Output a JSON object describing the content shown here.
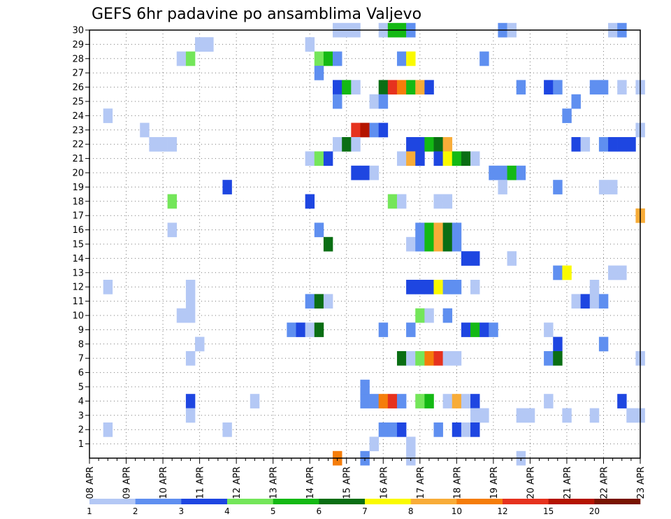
{
  "chart_data": {
    "type": "heatmap",
    "title": "GEFS 6hr padavine po ansamblima Valjevo",
    "xlabel": "",
    "ylabel": "",
    "x_ticks": [
      "08 APR",
      "09 APR",
      "10 APR",
      "11 APR",
      "12 APR",
      "13 APR",
      "14 APR",
      "15 APR",
      "16 APR",
      "17 APR",
      "18 APR",
      "19 APR",
      "20 APR",
      "21 APR",
      "22 APR",
      "23 APR"
    ],
    "y_ticks": [
      "1",
      "2",
      "3",
      "4",
      "5",
      "6",
      "7",
      "8",
      "9",
      "10",
      "11",
      "12",
      "13",
      "14",
      "15",
      "16",
      "17",
      "18",
      "19",
      "20",
      "21",
      "22",
      "23",
      "24",
      "25",
      "26",
      "27",
      "28",
      "29",
      "30"
    ],
    "ylim": [
      0,
      30
    ],
    "xlim_steps": [
      0,
      60
    ],
    "steps_per_day": 4,
    "grid": true,
    "levels": [
      "1",
      "2",
      "3",
      "4",
      "5",
      "6",
      "7",
      "8",
      "10",
      "12",
      "15",
      "20"
    ],
    "level_colors": [
      "#b4c8f5",
      "#5f8ff0",
      "#1e46e1",
      "#74e65a",
      "#14b914",
      "#0a6e14",
      "#fafa00",
      "#f8ac38",
      "#f57d0a",
      "#e6321e",
      "#b41400",
      "#781400"
    ],
    "cells": [
      [
        30,
        27,
        1
      ],
      [
        30,
        28,
        1
      ],
      [
        30,
        29,
        1
      ],
      [
        30,
        32,
        1
      ],
      [
        30,
        33,
        5
      ],
      [
        30,
        34,
        5
      ],
      [
        30,
        35,
        2
      ],
      [
        30,
        45,
        2
      ],
      [
        30,
        46,
        1
      ],
      [
        30,
        57,
        1
      ],
      [
        30,
        58,
        2
      ],
      [
        29,
        12,
        1
      ],
      [
        29,
        13,
        1
      ],
      [
        29,
        24,
        1
      ],
      [
        28,
        10,
        1
      ],
      [
        28,
        11,
        4
      ],
      [
        28,
        25,
        4
      ],
      [
        28,
        26,
        5
      ],
      [
        28,
        27,
        2
      ],
      [
        28,
        34,
        2
      ],
      [
        28,
        35,
        7
      ],
      [
        28,
        43,
        2
      ],
      [
        27,
        25,
        2
      ],
      [
        26,
        27,
        3
      ],
      [
        26,
        28,
        5
      ],
      [
        26,
        29,
        1
      ],
      [
        26,
        32,
        6
      ],
      [
        26,
        33,
        10
      ],
      [
        26,
        34,
        9
      ],
      [
        26,
        35,
        5
      ],
      [
        26,
        36,
        8
      ],
      [
        26,
        37,
        3
      ],
      [
        26,
        47,
        2
      ],
      [
        26,
        50,
        3
      ],
      [
        26,
        51,
        2
      ],
      [
        26,
        55,
        2
      ],
      [
        26,
        56,
        2
      ],
      [
        26,
        58,
        1
      ],
      [
        26,
        60,
        1
      ],
      [
        25,
        27,
        2
      ],
      [
        25,
        31,
        1
      ],
      [
        25,
        32,
        2
      ],
      [
        25,
        53,
        2
      ],
      [
        24,
        2,
        1
      ],
      [
        24,
        52,
        2
      ],
      [
        23,
        6,
        1
      ],
      [
        23,
        29,
        10
      ],
      [
        23,
        30,
        11
      ],
      [
        23,
        31,
        2
      ],
      [
        23,
        32,
        3
      ],
      [
        23,
        60,
        1
      ],
      [
        22,
        7,
        1
      ],
      [
        22,
        8,
        1
      ],
      [
        22,
        9,
        1
      ],
      [
        22,
        27,
        1
      ],
      [
        22,
        28,
        6
      ],
      [
        22,
        29,
        1
      ],
      [
        22,
        35,
        3
      ],
      [
        22,
        36,
        3
      ],
      [
        22,
        37,
        5
      ],
      [
        22,
        38,
        6
      ],
      [
        22,
        39,
        8
      ],
      [
        22,
        53,
        3
      ],
      [
        22,
        54,
        1
      ],
      [
        22,
        56,
        2
      ],
      [
        22,
        57,
        3
      ],
      [
        22,
        58,
        3
      ],
      [
        22,
        59,
        3
      ],
      [
        21,
        24,
        1
      ],
      [
        21,
        25,
        4
      ],
      [
        21,
        26,
        3
      ],
      [
        21,
        34,
        1
      ],
      [
        21,
        35,
        8
      ],
      [
        21,
        36,
        3
      ],
      [
        21,
        38,
        3
      ],
      [
        21,
        39,
        7
      ],
      [
        21,
        40,
        5
      ],
      [
        21,
        41,
        6
      ],
      [
        21,
        42,
        1
      ],
      [
        20,
        29,
        3
      ],
      [
        20,
        30,
        3
      ],
      [
        20,
        31,
        1
      ],
      [
        20,
        44,
        2
      ],
      [
        20,
        45,
        2
      ],
      [
        20,
        46,
        5
      ],
      [
        20,
        47,
        2
      ],
      [
        19,
        15,
        3
      ],
      [
        19,
        45,
        1
      ],
      [
        19,
        51,
        2
      ],
      [
        19,
        56,
        1
      ],
      [
        19,
        57,
        1
      ],
      [
        18,
        9,
        4
      ],
      [
        18,
        24,
        3
      ],
      [
        18,
        33,
        4
      ],
      [
        18,
        34,
        1
      ],
      [
        18,
        38,
        1
      ],
      [
        18,
        39,
        1
      ],
      [
        17,
        60,
        8
      ],
      [
        16,
        9,
        1
      ],
      [
        16,
        25,
        2
      ],
      [
        16,
        36,
        2
      ],
      [
        16,
        37,
        5
      ],
      [
        16,
        38,
        8
      ],
      [
        16,
        39,
        6
      ],
      [
        16,
        40,
        2
      ],
      [
        15,
        26,
        6
      ],
      [
        15,
        35,
        1
      ],
      [
        15,
        36,
        2
      ],
      [
        15,
        37,
        5
      ],
      [
        15,
        38,
        8
      ],
      [
        15,
        39,
        6
      ],
      [
        15,
        40,
        2
      ],
      [
        14,
        41,
        3
      ],
      [
        14,
        42,
        3
      ],
      [
        14,
        46,
        1
      ],
      [
        13,
        51,
        2
      ],
      [
        13,
        52,
        7
      ],
      [
        13,
        57,
        1
      ],
      [
        13,
        58,
        1
      ],
      [
        12,
        2,
        1
      ],
      [
        12,
        11,
        1
      ],
      [
        12,
        35,
        3
      ],
      [
        12,
        36,
        3
      ],
      [
        12,
        37,
        3
      ],
      [
        12,
        38,
        7
      ],
      [
        12,
        39,
        2
      ],
      [
        12,
        40,
        2
      ],
      [
        12,
        42,
        1
      ],
      [
        12,
        55,
        1
      ],
      [
        11,
        11,
        1
      ],
      [
        11,
        24,
        2
      ],
      [
        11,
        25,
        6
      ],
      [
        11,
        26,
        1
      ],
      [
        11,
        53,
        1
      ],
      [
        11,
        54,
        3
      ],
      [
        11,
        55,
        1
      ],
      [
        11,
        56,
        2
      ],
      [
        10,
        10,
        1
      ],
      [
        10,
        11,
        1
      ],
      [
        10,
        36,
        4
      ],
      [
        10,
        37,
        1
      ],
      [
        10,
        39,
        2
      ],
      [
        9,
        22,
        2
      ],
      [
        9,
        23,
        3
      ],
      [
        9,
        24,
        1
      ],
      [
        9,
        25,
        6
      ],
      [
        9,
        32,
        2
      ],
      [
        9,
        35,
        2
      ],
      [
        9,
        41,
        3
      ],
      [
        9,
        42,
        5
      ],
      [
        9,
        43,
        3
      ],
      [
        9,
        44,
        2
      ],
      [
        9,
        50,
        1
      ],
      [
        8,
        12,
        1
      ],
      [
        8,
        51,
        3
      ],
      [
        8,
        56,
        2
      ],
      [
        7,
        11,
        1
      ],
      [
        7,
        34,
        6
      ],
      [
        7,
        35,
        1
      ],
      [
        7,
        36,
        4
      ],
      [
        7,
        37,
        9
      ],
      [
        7,
        38,
        10
      ],
      [
        7,
        39,
        1
      ],
      [
        7,
        40,
        1
      ],
      [
        7,
        50,
        2
      ],
      [
        7,
        51,
        6
      ],
      [
        7,
        60,
        1
      ],
      [
        5,
        30,
        2
      ],
      [
        4,
        11,
        3
      ],
      [
        4,
        18,
        1
      ],
      [
        4,
        30,
        2
      ],
      [
        4,
        31,
        2
      ],
      [
        4,
        32,
        9
      ],
      [
        4,
        33,
        10
      ],
      [
        4,
        34,
        2
      ],
      [
        4,
        36,
        4
      ],
      [
        4,
        37,
        5
      ],
      [
        4,
        39,
        1
      ],
      [
        4,
        40,
        8
      ],
      [
        4,
        41,
        1
      ],
      [
        4,
        42,
        3
      ],
      [
        4,
        50,
        1
      ],
      [
        4,
        58,
        3
      ],
      [
        3,
        11,
        1
      ],
      [
        3,
        42,
        1
      ],
      [
        3,
        43,
        1
      ],
      [
        3,
        47,
        1
      ],
      [
        3,
        48,
        1
      ],
      [
        3,
        52,
        1
      ],
      [
        3,
        55,
        1
      ],
      [
        3,
        59,
        1
      ],
      [
        3,
        60,
        1
      ],
      [
        2,
        2,
        1
      ],
      [
        2,
        15,
        1
      ],
      [
        2,
        32,
        2
      ],
      [
        2,
        33,
        2
      ],
      [
        2,
        34,
        3
      ],
      [
        2,
        38,
        2
      ],
      [
        2,
        40,
        3
      ],
      [
        2,
        41,
        1
      ],
      [
        2,
        42,
        3
      ],
      [
        1,
        31,
        1
      ],
      [
        1,
        35,
        1
      ],
      [
        0,
        27,
        9
      ],
      [
        0,
        30,
        2
      ],
      [
        0,
        35,
        1
      ],
      [
        0,
        47,
        1
      ]
    ]
  }
}
